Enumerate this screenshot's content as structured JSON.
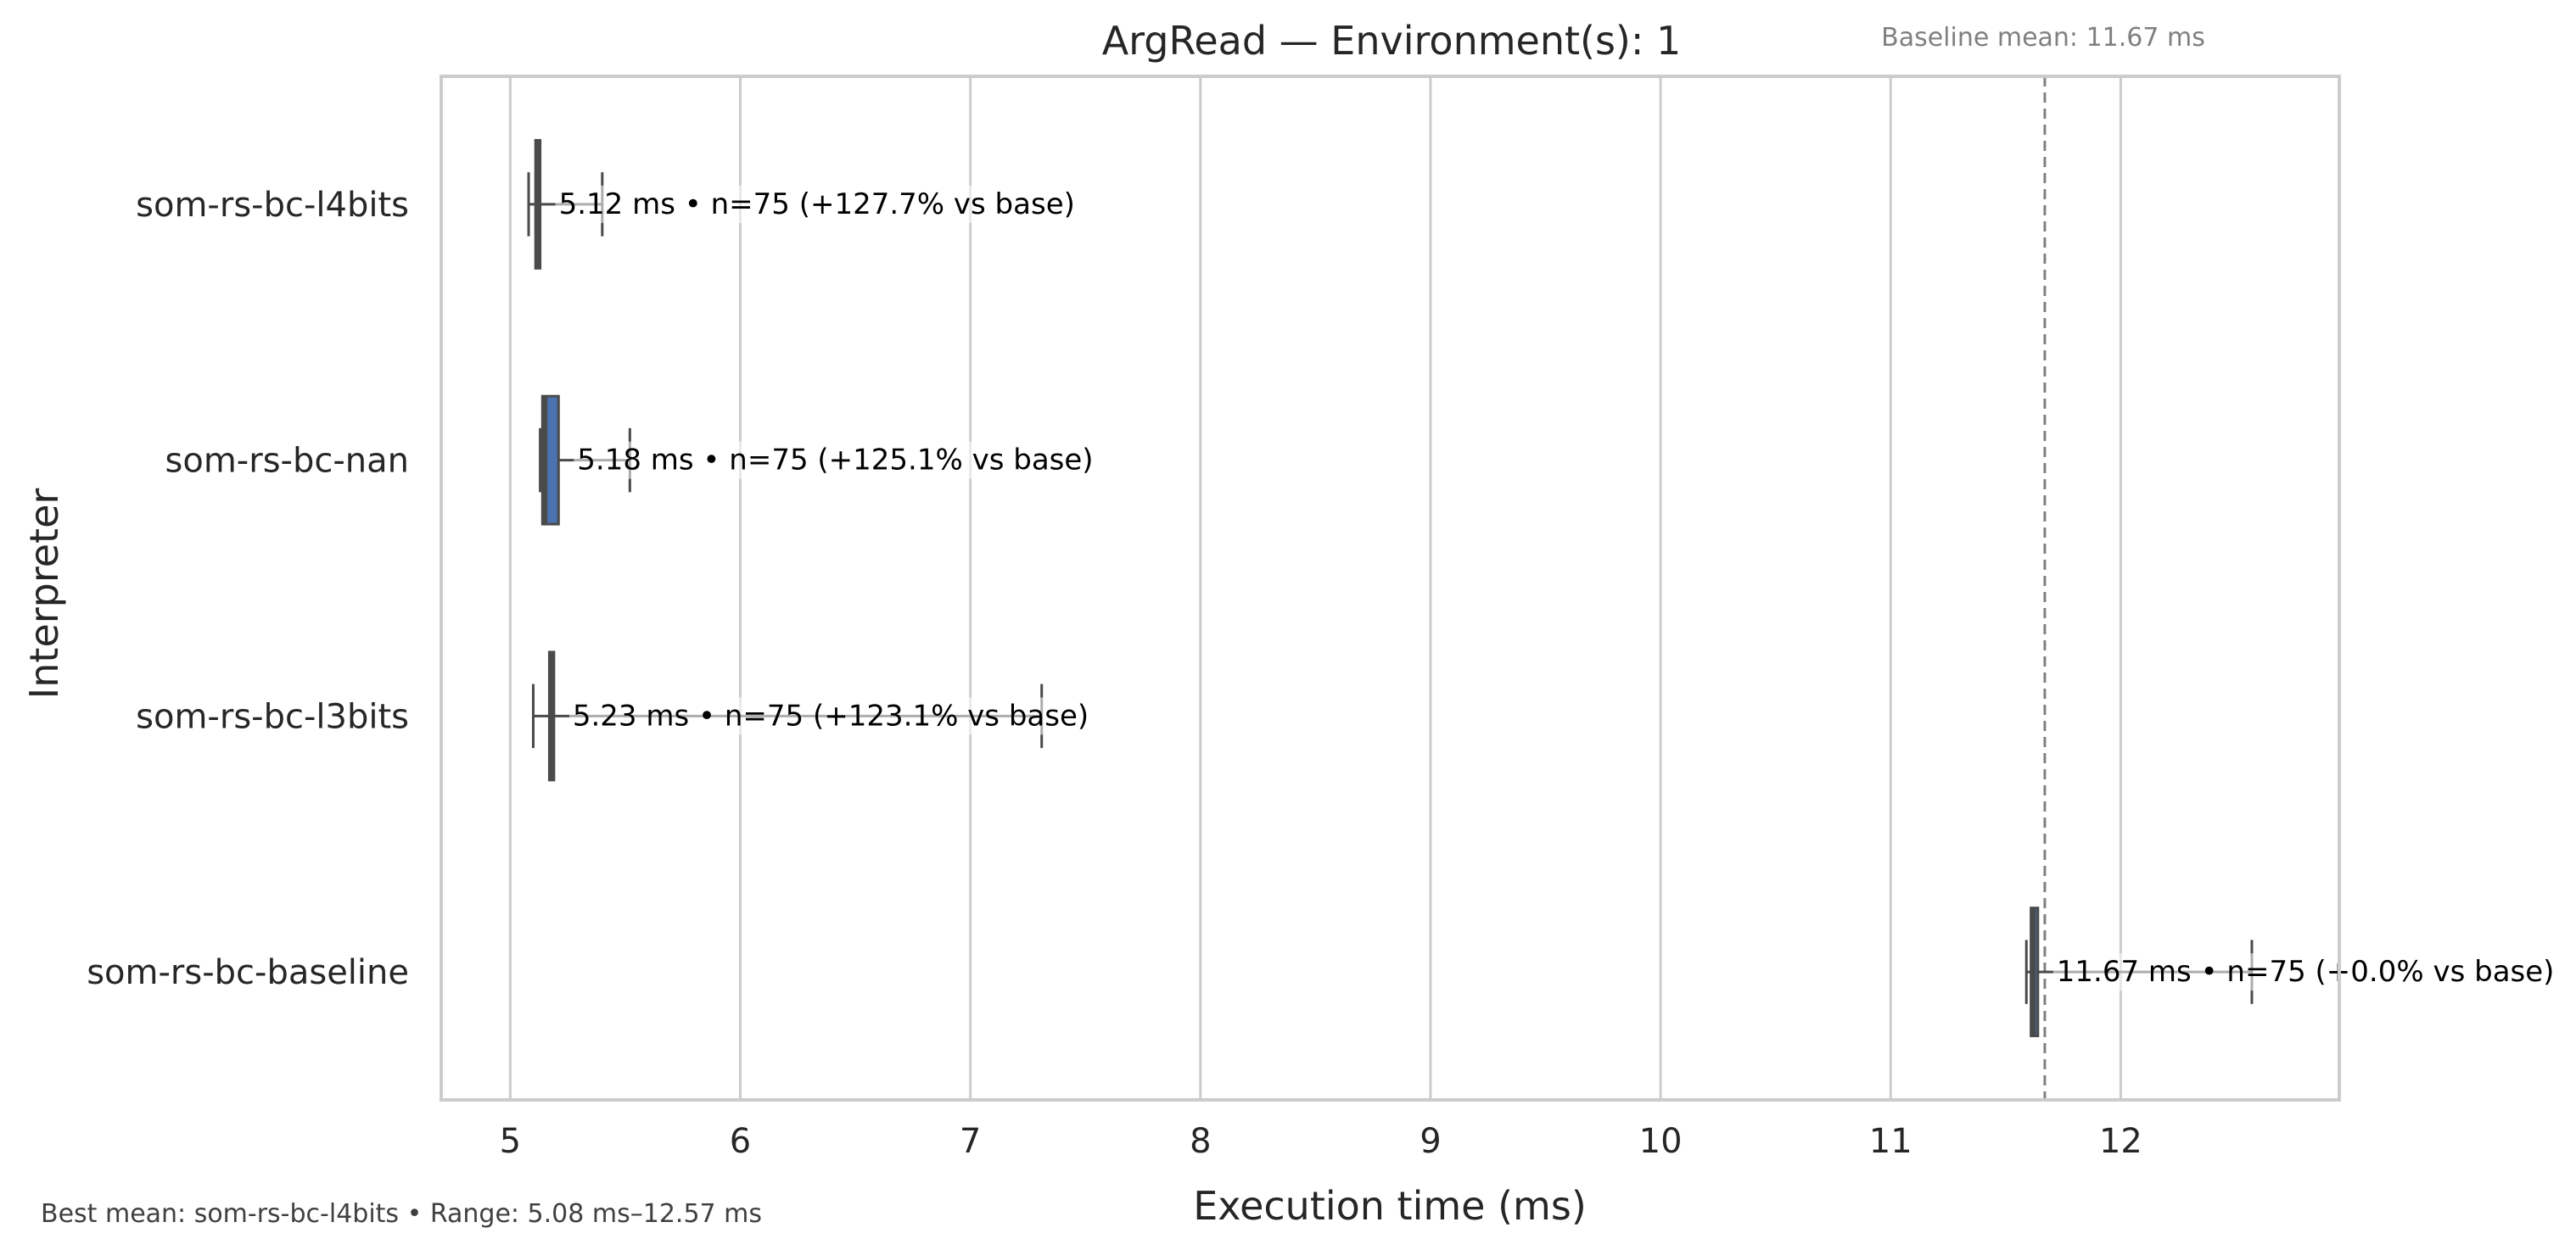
{
  "chart_data": {
    "type": "boxplot",
    "orientation": "horizontal",
    "title": "ArgRead — Environment(s): 1",
    "xlabel": "Execution time (ms)",
    "ylabel": "Interpreter",
    "xlim": [
      4.7,
      12.95
    ],
    "xticks": [
      "5",
      "6",
      "7",
      "8",
      "9",
      "10",
      "11",
      "12"
    ],
    "grid": "vertical",
    "baseline": {
      "value": 11.67,
      "label": "Baseline mean: 11.67 ms"
    },
    "footer": "Best mean: som-rs-bc-l4bits • Range: 5.08 ms–12.57 ms",
    "colors": {
      "box_fill": "#4c72b0",
      "box_edge": "#4a4a4a",
      "grid": "#cccccc",
      "baseline": "#808080"
    },
    "categories": [
      "som-rs-bc-l4bits",
      "som-rs-bc-nan",
      "som-rs-bc-l3bits",
      "som-rs-bc-baseline"
    ],
    "series": [
      {
        "category": "som-rs-bc-l4bits",
        "whisker_low": 5.08,
        "q1": 5.11,
        "median": 5.12,
        "q3": 5.13,
        "whisker_high": 5.4,
        "annotation": "5.12 ms • n=75 (+127.7% vs base)"
      },
      {
        "category": "som-rs-bc-nan",
        "whisker_low": 5.13,
        "q1": 5.14,
        "median": 5.15,
        "q3": 5.21,
        "whisker_high": 5.52,
        "annotation": "5.18 ms • n=75 (+125.1% vs base)"
      },
      {
        "category": "som-rs-bc-l3bits",
        "whisker_low": 5.1,
        "q1": 5.17,
        "median": 5.18,
        "q3": 5.19,
        "whisker_high": 7.31,
        "annotation": "5.23 ms • n=75 (+123.1% vs base)"
      },
      {
        "category": "som-rs-bc-baseline",
        "whisker_low": 11.59,
        "q1": 11.61,
        "median": 11.62,
        "q3": 11.64,
        "whisker_high": 12.57,
        "annotation": "11.67 ms • n=75 (+0.0% vs base)"
      }
    ]
  }
}
